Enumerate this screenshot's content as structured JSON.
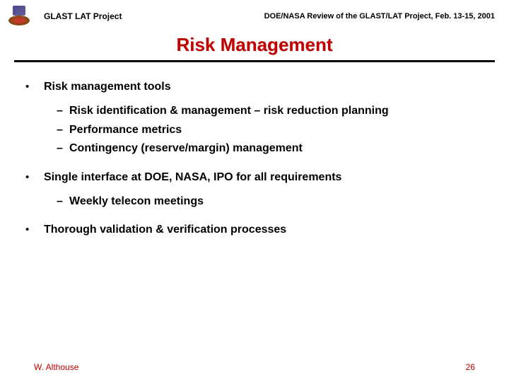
{
  "header": {
    "left": "GLAST LAT Project",
    "right": "DOE/NASA Review of the GLAST/LAT Project, Feb. 13-15, 2001"
  },
  "title": "Risk Management",
  "colors": {
    "title_color": "#c00000",
    "text_color": "#000000",
    "footer_color": "#c00000",
    "background": "#ffffff"
  },
  "typography": {
    "title_fontsize": 26,
    "body_fontsize": 16,
    "header_fontsize": 12,
    "footer_fontsize": 12
  },
  "bullets": [
    {
      "text": "Risk management tools",
      "subs": [
        "Risk identification & management – risk reduction planning",
        "Performance metrics",
        "Contingency (reserve/margin) management"
      ]
    },
    {
      "text": "Single interface at DOE, NASA, IPO for all requirements",
      "subs": [
        "Weekly telecon meetings"
      ]
    },
    {
      "text": "Thorough validation & verification processes",
      "subs": []
    }
  ],
  "footer": {
    "author": "W. Althouse",
    "page": "26"
  }
}
